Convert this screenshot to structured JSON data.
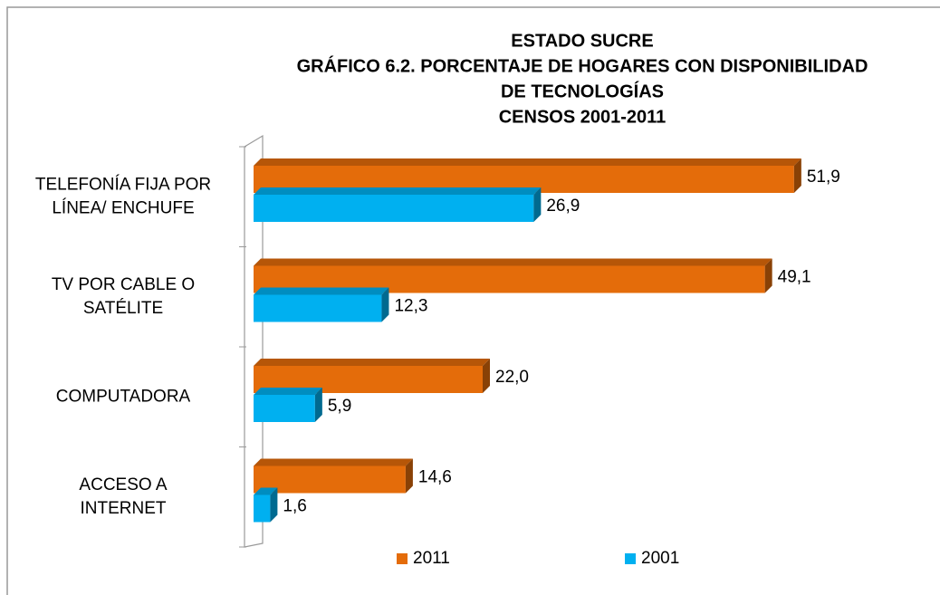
{
  "chart_data": {
    "type": "bar",
    "orientation": "horizontal",
    "title": [
      "ESTADO SUCRE",
      "GRÁFICO 6.2. PORCENTAJE DE HOGARES CON DISPONIBILIDAD",
      "DE TECNOLOGÍAS",
      "CENSOS 2001-2011"
    ],
    "categories": [
      [
        "TELEFONÍA FIJA POR",
        "LÍNEA/ ENCHUFE"
      ],
      [
        "TV POR CABLE O",
        "SATÉLITE"
      ],
      [
        "COMPUTADORA"
      ],
      [
        "ACCESO A",
        "INTERNET"
      ]
    ],
    "series": [
      {
        "name": "2011",
        "color": "#E46C0A",
        "values": [
          51.9,
          49.1,
          22.0,
          14.6
        ],
        "value_labels": [
          "51,9",
          "49,1",
          "22,0",
          "14,6"
        ]
      },
      {
        "name": "2001",
        "color": "#00B0F0",
        "values": [
          26.9,
          12.3,
          5.9,
          1.6
        ],
        "value_labels": [
          "26,9",
          "12,3",
          "5,9",
          "1,6"
        ]
      }
    ],
    "legend": "bottom"
  }
}
